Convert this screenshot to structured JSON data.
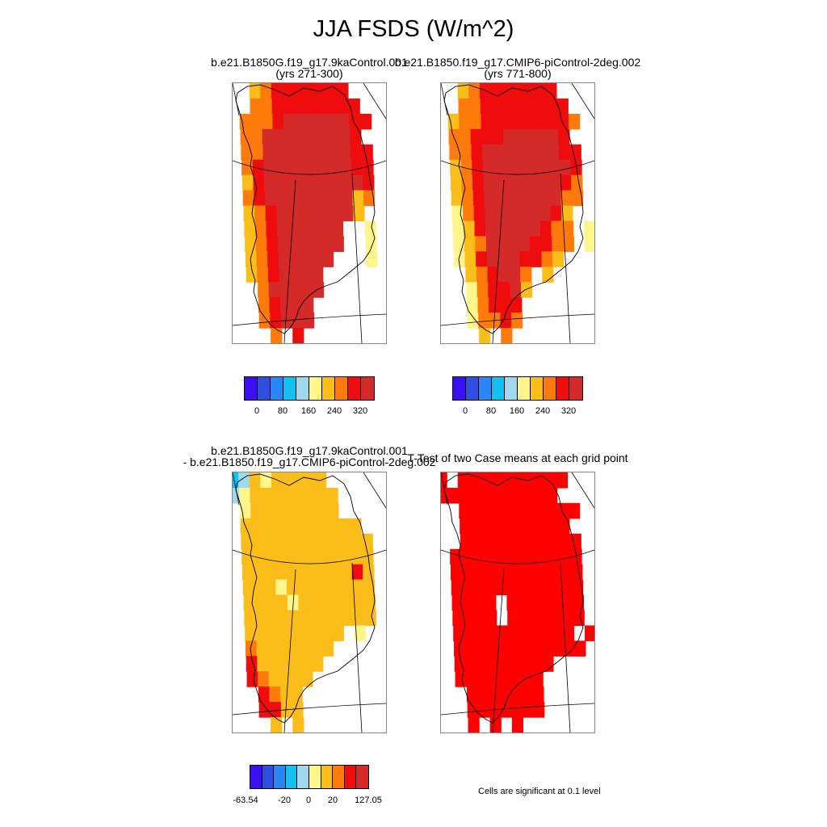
{
  "title": "JJA FSDS (W/m^2)",
  "panels": [
    {
      "id": "case1",
      "title_line1": "b.e21.B1850G.f19_g17.9kaControl.001",
      "title_line2": "(yrs 271-300)",
      "field": "case1"
    },
    {
      "id": "case2",
      "title_line1": "b.e21.B1850.f19_g17.CMIP6-piControl-2deg.002",
      "title_line2": "(yrs 771-800)",
      "field": "case2"
    },
    {
      "id": "diff",
      "title_line1": "b.e21.B1850G.f19_g17.9kaControl.001",
      "title_line2": "- b.e21.B1850.f19_g17.CMIP6-piControl-2deg.002",
      "field": "diff"
    },
    {
      "id": "ttest",
      "title_line1": "T-Test of two Case means at each grid point",
      "title_line2": "",
      "field": "sig"
    }
  ],
  "colorbars": {
    "abs": {
      "colors": [
        "#3a10f2",
        "#2f4fe0",
        "#2b86f7",
        "#12c0f2",
        "#9fd8ec",
        "#fef68a",
        "#fbbd1a",
        "#fd7a0b",
        "#ee0c0c",
        "#d42a2a"
      ],
      "labels": [
        "0",
        "80",
        "160",
        "240",
        "320"
      ]
    },
    "diff": {
      "colors": [
        "#3a10f2",
        "#2f4fe0",
        "#2b86f7",
        "#12c0f2",
        "#9fd8ec",
        "#fef68a",
        "#fbbd1a",
        "#fd7a0b",
        "#ee0c0c",
        "#d42a2a"
      ],
      "labels": [
        "-63.54",
        "-20",
        "0",
        "20",
        "127.05"
      ]
    }
  },
  "significance_note": "Cells are significant at 0.1 level",
  "map_colors": {
    "coast": "#000000",
    "grid": "#000000",
    "significant": "#ff0000"
  },
  "fields": {
    "case1": [
      "..678888888...",
      "..7788888888..",
      ".777899999988.",
      ".77999999998..",
      ".779999999988.",
      ".789999999988.",
      ".689999999998.",
      ".789999999967.",
      ".67899999996..",
      ".678999999..5.",
      ".678999999..5.",
      ".67899999...5.",
      ".6789999......",
      "..799999......",
      "..78999.......",
      "..78999.......",
      "...7.8........"
    ],
    "case2": [
      "..678888888...",
      "..7788888888..",
      ".677888888887.",
      ".77888999998..",
      ".778999999988.",
      ".678999999998.",
      ".678999999987.",
      ".678999999977.",
      ".57899999986..",
      ".56899999877.5",
      ".56799998877.5",
      ".5689998876...",
      "..678997.6....",
      "..578896......",
      "..57888.......",
      "..57787.......",
      "...6.7........"
    ],
    "diff": [
      "346566666.....",
      "4566666666....",
      ".566666666....",
      ".66666666666..",
      ".666666666666.",
      ".666666666666.",
      ".666666666686.",
      ".666566666666.",
      ".666656666666.",
      ".666666666666.",
      ".666666666.5..",
      ".76666666.....",
      ".8666666......",
      ".876666.......",
      "..8766........",
      "..8866........",
      "...6.6........"
    ],
    "sig": [
      "1.1111111111..",
      "11111111111...",
      "..11111111111.",
      "..1111111111..",
      "..11111111111.",
      ".111111111111.",
      ".111111111111.",
      ".111111111111.",
      ".111101111111.",
      ".111101111111.",
      ".11111111111.1",
      ".111111111111.",
      ".111111111....",
      ".11111111.....",
      "..1111111.....",
      "..1111111.....",
      "..1.1.1......."
    ]
  }
}
